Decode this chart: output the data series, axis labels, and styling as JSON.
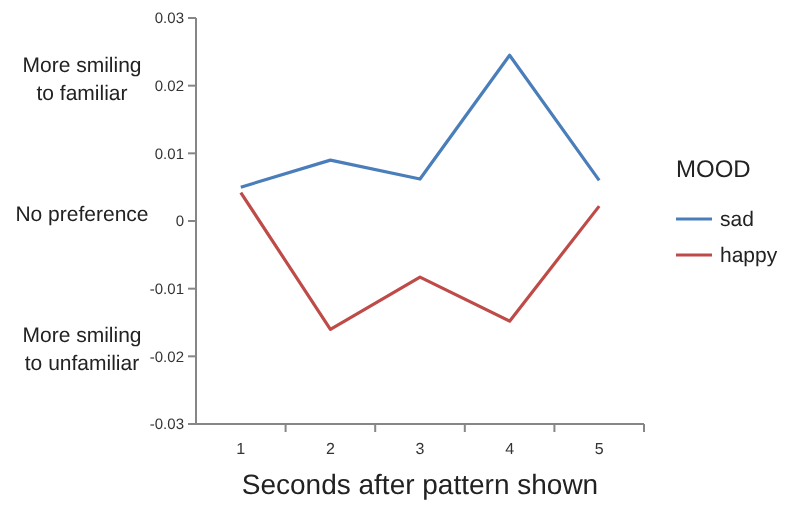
{
  "chart_data": {
    "type": "line",
    "xlabel": "Seconds after pattern shown",
    "legend_title": "MOOD",
    "categories": [
      "1",
      "2",
      "3",
      "4",
      "5"
    ],
    "series": [
      {
        "name": "sad",
        "color": "#4a7ebb",
        "values": [
          0.005,
          0.009,
          0.0062,
          0.0245,
          0.006
        ]
      },
      {
        "name": "happy",
        "color": "#be4b48",
        "values": [
          0.0042,
          -0.016,
          -0.0083,
          -0.0148,
          0.0022
        ]
      }
    ],
    "ylim": [
      -0.03,
      0.03
    ],
    "yticks": [
      -0.03,
      -0.02,
      -0.01,
      0,
      0.01,
      0.02,
      0.03
    ],
    "annotations": [
      "More smiling to familiar",
      "No preference",
      "More smiling to unfamiliar"
    ],
    "legend": "right",
    "grid": false
  }
}
